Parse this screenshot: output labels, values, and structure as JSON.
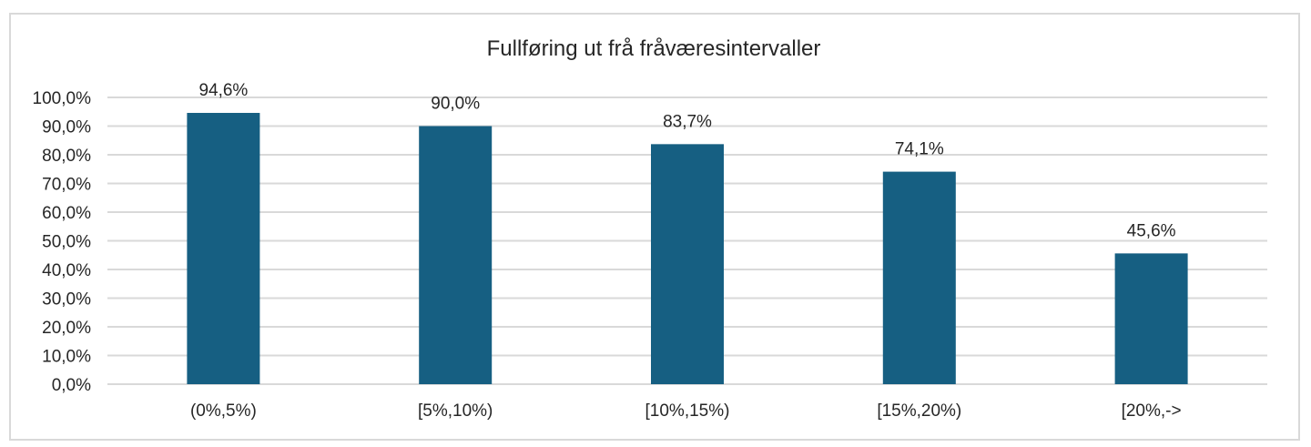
{
  "chart_data": {
    "type": "bar",
    "title": "Fullføring ut frå fråværesintervaller",
    "xlabel": "",
    "ylabel": "",
    "categories": [
      "(0%,5%)",
      "[5%,10%)",
      "[10%,15%)",
      "[15%,20%)",
      "[20%,->"
    ],
    "values": [
      94.6,
      90.0,
      83.7,
      74.1,
      45.6
    ],
    "data_labels": [
      "94,6%",
      "90,0%",
      "83,7%",
      "74,1%",
      "45,6%"
    ],
    "ylim": [
      0,
      100
    ],
    "yticks": [
      "0,0%",
      "10,0%",
      "20,0%",
      "30,0%",
      "40,0%",
      "50,0%",
      "60,0%",
      "70,0%",
      "80,0%",
      "90,0%",
      "100,0%"
    ],
    "grid": true,
    "legend": "none",
    "colors": {
      "bar": "#165f82",
      "grid": "#d9d9d9",
      "text": "#262626"
    }
  }
}
